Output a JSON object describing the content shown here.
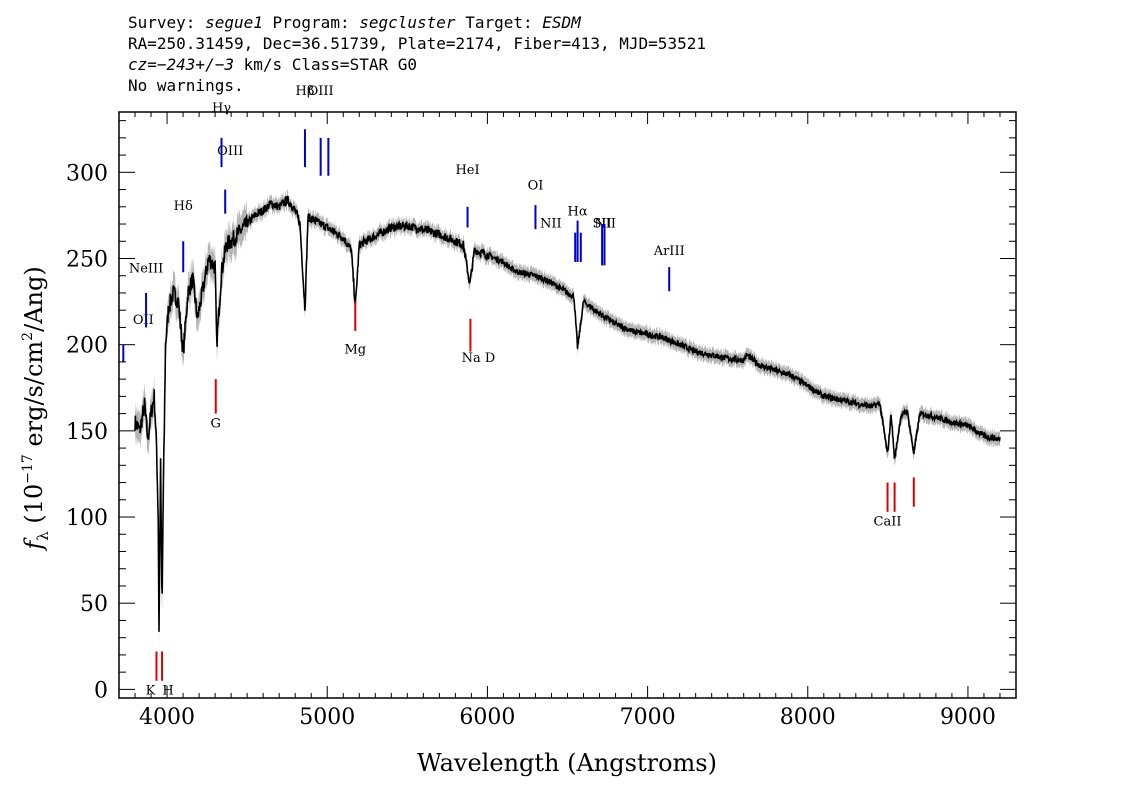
{
  "header": {
    "survey_label": "Survey:",
    "survey": "segue1",
    "program_label": "Program:",
    "program": "segcluster",
    "target_label": "Target:",
    "target": "ESDM",
    "line2": "RA=250.31459, Dec=36.51739, Plate=2174, Fiber=413, MJD=53521",
    "cz": "cz=−243+/−3",
    "cz_rest": " km/s Class=STAR G0",
    "line4": "No warnings."
  },
  "chart_data": {
    "type": "line",
    "xlabel": "Wavelength (Angstroms)",
    "ylabel": "f_λ (10^-17 erg/s/cm^2/Ang)",
    "xlim": [
      3700,
      9300
    ],
    "ylim": [
      -5,
      335
    ],
    "xticks": [
      "4000",
      "5000",
      "6000",
      "7000",
      "8000",
      "9000"
    ],
    "yticks": [
      "0",
      "50",
      "100",
      "150",
      "200",
      "250",
      "300"
    ],
    "colors": {
      "spectrum": "#000000",
      "error": "#b4b4b4",
      "emission": "#0000cc",
      "absorption": "#dd0000"
    },
    "series": [
      {
        "x": [
          3800,
          3830,
          3860,
          3880,
          3900,
          3920,
          3935,
          3945,
          3950,
          3960,
          3969,
          3975,
          3990,
          4010,
          4040,
          4070,
          4101,
          4130,
          4160,
          4190,
          4230,
          4260,
          4300,
          4310,
          4340,
          4370,
          4400,
          4450,
          4500,
          4550,
          4600,
          4650,
          4700,
          4750,
          4800,
          4830,
          4861,
          4880,
          4920,
          4960,
          5000,
          5050,
          5100,
          5150,
          5175,
          5200,
          5300,
          5400,
          5500,
          5600,
          5700,
          5800,
          5850,
          5890,
          5920,
          6000,
          6100,
          6150,
          6200,
          6300,
          6400,
          6500,
          6540,
          6563,
          6600,
          6700,
          6800,
          6900,
          7000,
          7100,
          7200,
          7300,
          7400,
          7500,
          7600,
          7620,
          7700,
          7800,
          7900,
          8000,
          8100,
          8200,
          8300,
          8400,
          8450,
          8498,
          8520,
          8542,
          8580,
          8620,
          8662,
          8700,
          8800,
          8900,
          9000,
          9100,
          9200
        ],
        "y": [
          155,
          150,
          165,
          145,
          160,
          170,
          140,
          100,
          35,
          130,
          45,
          100,
          200,
          222,
          230,
          225,
          195,
          230,
          238,
          215,
          235,
          250,
          245,
          200,
          242,
          258,
          260,
          265,
          270,
          275,
          278,
          282,
          280,
          284,
          278,
          270,
          220,
          274,
          272,
          270,
          268,
          265,
          262,
          255,
          222,
          258,
          263,
          268,
          269,
          267,
          264,
          260,
          258,
          235,
          255,
          252,
          248,
          244,
          242,
          240,
          236,
          230,
          228,
          198,
          225,
          218,
          212,
          208,
          206,
          204,
          200,
          196,
          194,
          192,
          191,
          194,
          188,
          185,
          182,
          176,
          170,
          168,
          166,
          164,
          166,
          136,
          160,
          133,
          158,
          162,
          137,
          160,
          158,
          155,
          153,
          147,
          145
        ]
      }
    ],
    "annotations": {
      "emission": [
        {
          "label": "OII",
          "x": 3727
        },
        {
          "label": "NeIII",
          "x": 3869
        },
        {
          "label": "Hδ",
          "x": 4101
        },
        {
          "label": "Hγ",
          "x": 4340
        },
        {
          "label": "OIII",
          "x": 4363
        },
        {
          "label": "Hβ",
          "x": 4861
        },
        {
          "label": "OIII",
          "x": 4959
        },
        {
          "label": "OIII",
          "x": 5007
        },
        {
          "label": "HeI",
          "x": 5876
        },
        {
          "label": "OI",
          "x": 6300
        },
        {
          "label": "NII",
          "x": 6548
        },
        {
          "label": "Hα",
          "x": 6563
        },
        {
          "label": "NII",
          "x": 6583
        },
        {
          "label": "SII",
          "x": 6716
        },
        {
          "label": "SII",
          "x": 6731
        },
        {
          "label": "ArIII",
          "x": 7135
        }
      ],
      "absorption": [
        {
          "label": "K",
          "x": 3934
        },
        {
          "label": "H",
          "x": 3969
        },
        {
          "label": "G",
          "x": 4304
        },
        {
          "label": "Mg",
          "x": 5175
        },
        {
          "label": "Na D",
          "x": 5894
        },
        {
          "label": "CaII",
          "x": 8498
        },
        {
          "label": "CaII",
          "x": 8542
        },
        {
          "label": "CaII",
          "x": 8662
        }
      ]
    }
  }
}
